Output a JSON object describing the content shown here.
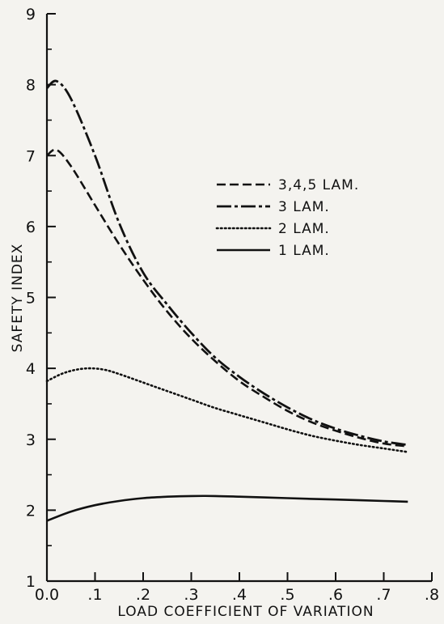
{
  "chart_data": {
    "type": "line",
    "xlabel": "LOAD COEFFICIENT OF VARIATION",
    "ylabel": "SAFETY INDEX",
    "xlim": [
      0,
      0.8
    ],
    "ylim": [
      1,
      9
    ],
    "x_ticks": [
      0,
      0.1,
      0.2,
      0.3,
      0.4,
      0.5,
      0.6,
      0.7,
      0.8
    ],
    "x_tick_labels": [
      "0.0",
      ".1",
      ".2",
      ".3",
      ".4",
      ".5",
      ".6",
      ".7",
      ".8"
    ],
    "y_ticks": [
      1,
      2,
      3,
      4,
      5,
      6,
      7,
      8,
      9
    ],
    "y_tick_labels": [
      "1",
      "2",
      "3",
      "4",
      "5",
      "6",
      "7",
      "8",
      "9"
    ],
    "grid": false,
    "legend_position": "top-right",
    "series": [
      {
        "name": "3,4,5 LAM.",
        "style": "dashed",
        "x": [
          0.0,
          0.02,
          0.05,
          0.1,
          0.15,
          0.2,
          0.25,
          0.3,
          0.35,
          0.4,
          0.45,
          0.5,
          0.55,
          0.6,
          0.65,
          0.7,
          0.75
        ],
        "y": [
          7.0,
          7.08,
          6.85,
          6.3,
          5.75,
          5.25,
          4.8,
          4.42,
          4.1,
          3.82,
          3.6,
          3.4,
          3.24,
          3.12,
          3.02,
          2.94,
          2.9
        ]
      },
      {
        "name": "3 LAM.",
        "style": "dash-dot",
        "x": [
          0.0,
          0.02,
          0.05,
          0.1,
          0.15,
          0.2,
          0.25,
          0.3,
          0.35,
          0.4,
          0.45,
          0.5,
          0.55,
          0.6,
          0.65,
          0.7,
          0.75
        ],
        "y": [
          7.95,
          8.05,
          7.8,
          7.0,
          6.05,
          5.35,
          4.9,
          4.5,
          4.15,
          3.88,
          3.65,
          3.45,
          3.28,
          3.15,
          3.05,
          2.97,
          2.92
        ]
      },
      {
        "name": "2 LAM.",
        "style": "dotted",
        "x": [
          0.0,
          0.03,
          0.06,
          0.09,
          0.12,
          0.15,
          0.2,
          0.25,
          0.3,
          0.35,
          0.4,
          0.45,
          0.5,
          0.55,
          0.6,
          0.65,
          0.7,
          0.75
        ],
        "y": [
          3.82,
          3.92,
          3.98,
          4.0,
          3.98,
          3.92,
          3.8,
          3.68,
          3.56,
          3.44,
          3.34,
          3.24,
          3.14,
          3.05,
          2.98,
          2.92,
          2.87,
          2.82
        ]
      },
      {
        "name": "1 LAM.",
        "style": "solid",
        "x": [
          0.0,
          0.05,
          0.1,
          0.15,
          0.2,
          0.25,
          0.3,
          0.35,
          0.4,
          0.45,
          0.5,
          0.55,
          0.6,
          0.65,
          0.7,
          0.75
        ],
        "y": [
          1.85,
          1.98,
          2.07,
          2.13,
          2.17,
          2.19,
          2.2,
          2.2,
          2.19,
          2.18,
          2.17,
          2.16,
          2.15,
          2.14,
          2.13,
          2.12
        ]
      }
    ]
  }
}
